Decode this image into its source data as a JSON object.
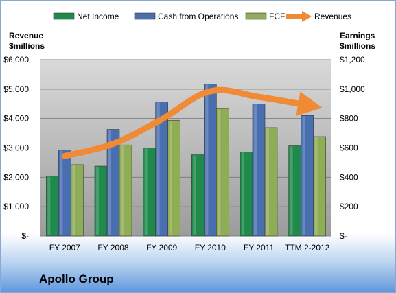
{
  "chart_data": {
    "type": "bar",
    "company": "Apollo Group",
    "categories": [
      "FY 2007",
      "FY 2008",
      "FY 2009",
      "FY 2010",
      "FY 2011",
      "TTM 2-2012"
    ],
    "series": [
      {
        "name": "Net Income",
        "axis": "right",
        "kind": "bar",
        "color": "#1f8a4c",
        "values": [
          408,
          476,
          599,
          553,
          572,
          614
        ]
      },
      {
        "name": "Cash from Operations",
        "axis": "right",
        "kind": "bar",
        "color": "#4a6fb0",
        "values": [
          585,
          726,
          913,
          1035,
          899,
          820
        ]
      },
      {
        "name": "FCF",
        "axis": "right",
        "kind": "bar",
        "color": "#8fad55",
        "values": [
          486,
          620,
          788,
          868,
          738,
          677
        ]
      },
      {
        "name": "Revenues",
        "axis": "left",
        "kind": "line",
        "color": "#f08a35",
        "values": [
          2724,
          3141,
          3974,
          4926,
          4733,
          4450
        ]
      }
    ],
    "left_axis": {
      "title_line1": "Revenue",
      "title_line2": "$millions",
      "range": [
        0,
        6000
      ],
      "tick_labels": [
        "$-",
        "$1,000",
        "$2,000",
        "$3,000",
        "$4,000",
        "$5,000",
        "$6,000"
      ]
    },
    "right_axis": {
      "title_line1": "Earnings",
      "title_line2": "$millions",
      "range": [
        0,
        1200
      ],
      "tick_labels": [
        "$-",
        "$200",
        "$400",
        "$600",
        "$800",
        "$1,000",
        "$1,200"
      ]
    },
    "legend_position": "top",
    "grid": true,
    "colors": {
      "plot_top": "#d9d9d9",
      "plot_bottom": "#9c9c9c",
      "grid": "#7f7f7f"
    }
  }
}
